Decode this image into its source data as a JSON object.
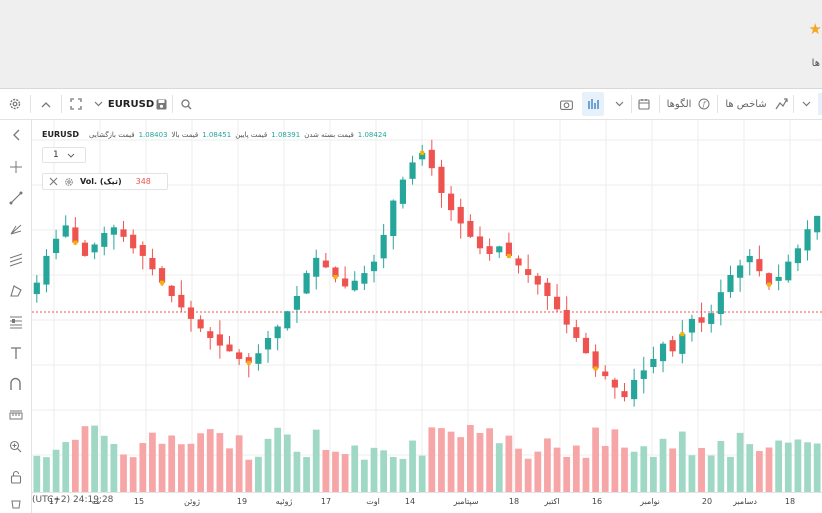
{
  "page": {
    "star": "★",
    "right_hint": "ها"
  },
  "toolbar": {
    "symbol": "EURUSD",
    "indicators_label": "شاخص ها",
    "patterns_label": "الگوها"
  },
  "legend": {
    "symbol": "EURUSD",
    "open_label": "قیمت بازگشایی",
    "open_value": "1.08403",
    "high_label": "قیمت بالا",
    "high_value": "1.08451",
    "low_label": "قیمت پایین",
    "low_value": "1.08391",
    "close_label": "قیمت بسته شدن",
    "close_value": "1.08424"
  },
  "interval": {
    "value": "1"
  },
  "volume": {
    "label": "Vol. (تیک)",
    "value": "348"
  },
  "xaxis": {
    "labels": [
      "17",
      "مه",
      "15",
      "ژوئن",
      "19",
      "ژوئیه",
      "17",
      "اوت",
      "14",
      "سپتامبر",
      "18",
      "اکتبر",
      "16",
      "نوامبر",
      "20",
      "دسامبر",
      "18"
    ]
  },
  "status": {
    "clock": "(UTC+2) 24:19:28"
  },
  "colors": {
    "up": "#26a69a",
    "down": "#ef5350",
    "grid": "#eeeeee",
    "price_line": "#ef5350"
  },
  "chart_data": {
    "type": "candlestick",
    "closes": [
      1.0798,
      1.0812,
      1.0821,
      1.0828,
      1.0819,
      1.0812,
      1.0818,
      1.0824,
      1.0827,
      1.0822,
      1.0816,
      1.0812,
      1.0805,
      1.0798,
      1.0791,
      1.0785,
      1.0779,
      1.0774,
      1.0769,
      1.0765,
      1.0762,
      1.0758,
      1.0756,
      1.0761,
      1.0769,
      1.0775,
      1.0783,
      1.0791,
      1.0803,
      1.0811,
      1.0806,
      1.0801,
      1.0796,
      1.0799,
      1.0803,
      1.0809,
      1.0823,
      1.0841,
      1.0852,
      1.0861,
      1.0866,
      1.0858,
      1.0845,
      1.0836,
      1.0829,
      1.0822,
      1.0816,
      1.0813,
      1.0817,
      1.0812,
      1.0807,
      1.0802,
      1.0797,
      1.0791,
      1.0784,
      1.0776,
      1.0769,
      1.0761,
      1.0753,
      1.0749,
      1.0743,
      1.0738,
      1.0747,
      1.0752,
      1.0758,
      1.0766,
      1.0762,
      1.0771,
      1.0779,
      1.0777,
      1.0782,
      1.0793,
      1.0802,
      1.0807,
      1.0812,
      1.0804,
      1.0797,
      1.0801,
      1.0809,
      1.0816,
      1.0826,
      1.0833
    ]
  }
}
